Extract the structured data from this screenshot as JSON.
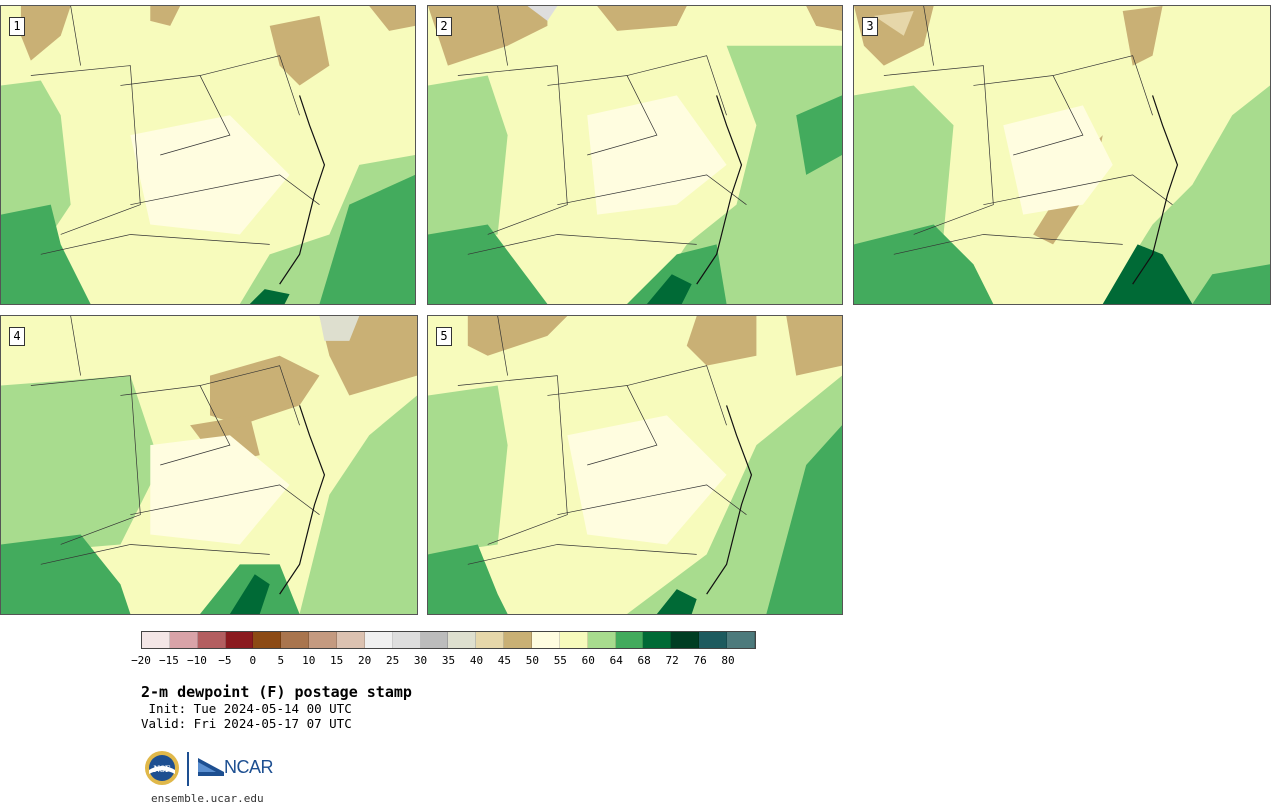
{
  "panels": [
    {
      "label": "1"
    },
    {
      "label": "2"
    },
    {
      "label": "3"
    },
    {
      "label": "4"
    },
    {
      "label": "5"
    }
  ],
  "colorbar": {
    "colors": [
      "#f3e6e6",
      "#d9a3a8",
      "#b35e60",
      "#8b1a1f",
      "#8c4a14",
      "#a9754e",
      "#c49a80",
      "#dcc2b1",
      "#f0f0f0",
      "#dedede",
      "#bcbcbc",
      "#dedfcf",
      "#e6d7aa",
      "#c9b075",
      "#fffde0",
      "#f7fbbc",
      "#a8dc8e",
      "#43ab5d",
      "#006a36",
      "#003d23",
      "#1d5a5e",
      "#4d7a7c"
    ],
    "ticks": [
      "−20",
      "−15",
      "−10",
      "−5",
      "0",
      "5",
      "10",
      "15",
      "20",
      "25",
      "30",
      "35",
      "40",
      "45",
      "50",
      "55",
      "60",
      "64",
      "68",
      "72",
      "76",
      "80"
    ]
  },
  "title": "2-m dewpoint (F) postage stamp",
  "init_line": " Init: Tue 2024-05-14 00 UTC",
  "valid_line": "Valid: Fri 2024-05-17 07 UTC",
  "logos": {
    "nsf_text": "NSF",
    "ncar_text": "NCAR"
  },
  "site": "ensemble.ucar.edu"
}
